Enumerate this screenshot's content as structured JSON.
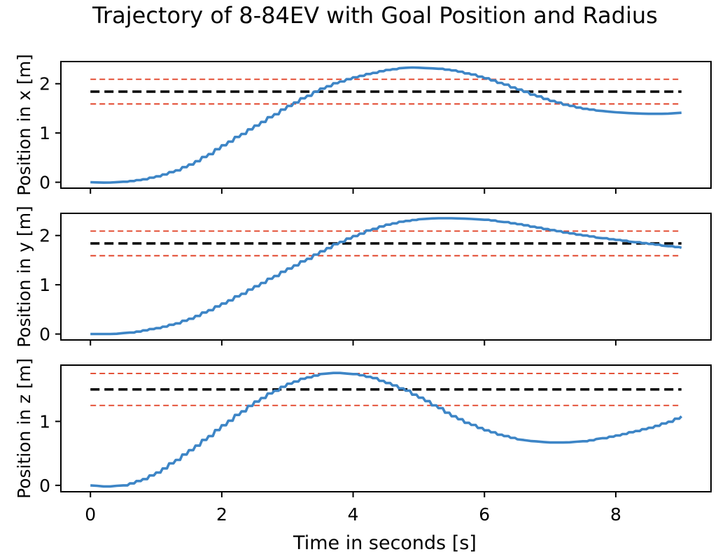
{
  "chart_data": {
    "title": "Trajectory of 8-84EV with Goal Position and Radius",
    "xlabel": "Time in seconds [s]",
    "xlim": [
      -0.45,
      9.45
    ],
    "x_ticks": [
      0,
      2,
      4,
      6,
      8
    ],
    "panels": [
      {
        "type": "line",
        "ylabel": "Position in x [m]",
        "ylim": [
          -0.12,
          2.45
        ],
        "y_ticks": [
          0,
          1,
          2
        ],
        "goal": 1.84,
        "radius": 0.25,
        "series": [
          {
            "color": "#3d85c6",
            "points": [
              [
                0,
                0
              ],
              [
                0.25,
                -0.01
              ],
              [
                0.5,
                0.01
              ],
              [
                0.75,
                0.05
              ],
              [
                1,
                0.12
              ],
              [
                1.25,
                0.22
              ],
              [
                1.5,
                0.36
              ],
              [
                1.75,
                0.54
              ],
              [
                2,
                0.75
              ],
              [
                2.25,
                0.95
              ],
              [
                2.5,
                1.15
              ],
              [
                2.75,
                1.35
              ],
              [
                3,
                1.55
              ],
              [
                3.25,
                1.73
              ],
              [
                3.5,
                1.9
              ],
              [
                3.75,
                2.03
              ],
              [
                4,
                2.13
              ],
              [
                4.25,
                2.21
              ],
              [
                4.5,
                2.28
              ],
              [
                4.75,
                2.32
              ],
              [
                4.9,
                2.33
              ],
              [
                5.25,
                2.31
              ],
              [
                5.5,
                2.27
              ],
              [
                5.75,
                2.2
              ],
              [
                6,
                2.11
              ],
              [
                6.25,
                2.0
              ],
              [
                6.5,
                1.88
              ],
              [
                6.75,
                1.76
              ],
              [
                7,
                1.65
              ],
              [
                7.25,
                1.56
              ],
              [
                7.5,
                1.49
              ],
              [
                7.75,
                1.45
              ],
              [
                8,
                1.42
              ],
              [
                8.25,
                1.4
              ],
              [
                8.5,
                1.39
              ],
              [
                8.75,
                1.39
              ],
              [
                9,
                1.41
              ]
            ]
          }
        ]
      },
      {
        "type": "line",
        "ylabel": "Position in y [m]",
        "ylim": [
          -0.12,
          2.45
        ],
        "y_ticks": [
          0,
          1,
          2
        ],
        "goal": 1.84,
        "radius": 0.25,
        "series": [
          {
            "color": "#3d85c6",
            "points": [
              [
                0,
                0
              ],
              [
                0.35,
                0
              ],
              [
                0.6,
                0.03
              ],
              [
                1,
                0.12
              ],
              [
                1.25,
                0.2
              ],
              [
                1.5,
                0.31
              ],
              [
                1.75,
                0.46
              ],
              [
                2,
                0.62
              ],
              [
                2.25,
                0.79
              ],
              [
                2.5,
                0.97
              ],
              [
                2.75,
                1.15
              ],
              [
                3,
                1.33
              ],
              [
                3.25,
                1.5
              ],
              [
                3.5,
                1.68
              ],
              [
                3.75,
                1.85
              ],
              [
                4,
                1.99
              ],
              [
                4.25,
                2.12
              ],
              [
                4.5,
                2.22
              ],
              [
                4.75,
                2.29
              ],
              [
                5,
                2.33
              ],
              [
                5.25,
                2.35
              ],
              [
                5.5,
                2.35
              ],
              [
                5.75,
                2.34
              ],
              [
                6,
                2.32
              ],
              [
                6.25,
                2.28
              ],
              [
                6.5,
                2.23
              ],
              [
                6.75,
                2.17
              ],
              [
                7,
                2.11
              ],
              [
                7.25,
                2.05
              ],
              [
                7.5,
                2.0
              ],
              [
                7.75,
                1.95
              ],
              [
                8,
                1.91
              ],
              [
                8.25,
                1.87
              ],
              [
                8.5,
                1.83
              ],
              [
                8.75,
                1.79
              ],
              [
                9,
                1.75
              ]
            ]
          }
        ]
      },
      {
        "type": "line",
        "ylabel": "Position in z [m]",
        "ylim": [
          -0.1,
          1.88
        ],
        "y_ticks": [
          0,
          1
        ],
        "goal": 1.5,
        "radius": 0.25,
        "series": [
          {
            "color": "#3d85c6",
            "points": [
              [
                0,
                0
              ],
              [
                0.25,
                -0.02
              ],
              [
                0.5,
                0.0
              ],
              [
                0.75,
                0.08
              ],
              [
                1,
                0.2
              ],
              [
                1.25,
                0.37
              ],
              [
                1.5,
                0.55
              ],
              [
                1.75,
                0.74
              ],
              [
                2,
                0.94
              ],
              [
                2.25,
                1.13
              ],
              [
                2.5,
                1.31
              ],
              [
                2.75,
                1.46
              ],
              [
                3,
                1.59
              ],
              [
                3.25,
                1.68
              ],
              [
                3.5,
                1.74
              ],
              [
                3.75,
                1.76
              ],
              [
                4,
                1.74
              ],
              [
                4.25,
                1.69
              ],
              [
                4.5,
                1.6
              ],
              [
                4.75,
                1.5
              ],
              [
                5,
                1.37
              ],
              [
                5.25,
                1.23
              ],
              [
                5.5,
                1.08
              ],
              [
                5.75,
                0.96
              ],
              [
                6,
                0.86
              ],
              [
                6.25,
                0.78
              ],
              [
                6.5,
                0.72
              ],
              [
                6.75,
                0.69
              ],
              [
                7,
                0.67
              ],
              [
                7.25,
                0.67
              ],
              [
                7.5,
                0.69
              ],
              [
                7.75,
                0.73
              ],
              [
                8,
                0.78
              ],
              [
                8.25,
                0.84
              ],
              [
                8.5,
                0.9
              ],
              [
                8.75,
                0.98
              ],
              [
                9,
                1.08
              ]
            ]
          }
        ]
      }
    ]
  }
}
